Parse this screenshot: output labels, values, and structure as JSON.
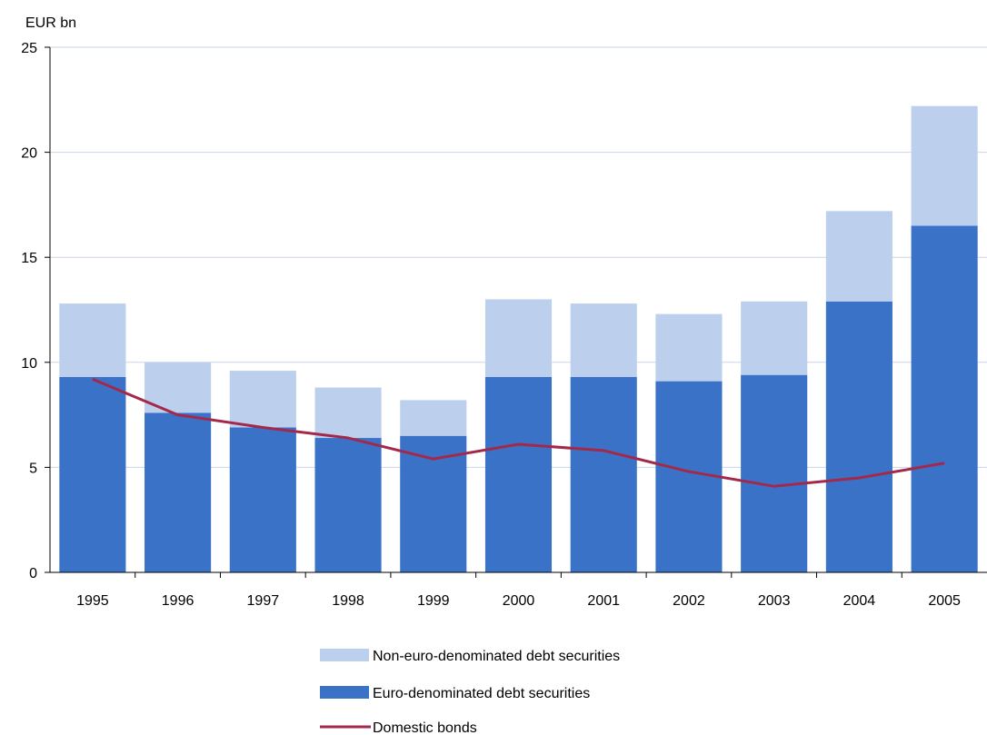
{
  "chart_data": {
    "type": "bar",
    "stacked": true,
    "unit_label": "EUR bn",
    "title": "",
    "xlabel": "",
    "ylabel": "",
    "categories": [
      "1995",
      "1996",
      "1997",
      "1998",
      "1999",
      "2000",
      "2001",
      "2002",
      "2003",
      "2004",
      "2005"
    ],
    "ylim": [
      0,
      25
    ],
    "yticks": [
      0,
      5,
      10,
      15,
      20,
      25
    ],
    "grid": true,
    "legend_position": "bottom",
    "series": [
      {
        "name": "Euro-denominated debt securities",
        "kind": "bar",
        "color": "#3a72c8",
        "values": [
          9.3,
          7.6,
          6.9,
          6.4,
          6.5,
          9.3,
          9.3,
          9.1,
          9.4,
          12.9,
          16.5
        ]
      },
      {
        "name": "Non-euro-denominated debt securities",
        "kind": "bar",
        "color": "#bcd0ee",
        "values": [
          3.5,
          2.4,
          2.7,
          2.4,
          1.7,
          3.7,
          3.5,
          3.2,
          3.5,
          4.3,
          5.7
        ]
      },
      {
        "name": "Domestic bonds",
        "kind": "line",
        "color": "#a3294a",
        "values": [
          9.2,
          7.5,
          6.9,
          6.4,
          5.4,
          6.1,
          5.8,
          4.8,
          4.1,
          4.5,
          5.2
        ]
      }
    ],
    "legend_order": [
      "Non-euro-denominated debt securities",
      "Euro-denominated debt securities",
      "Domestic bonds"
    ]
  }
}
